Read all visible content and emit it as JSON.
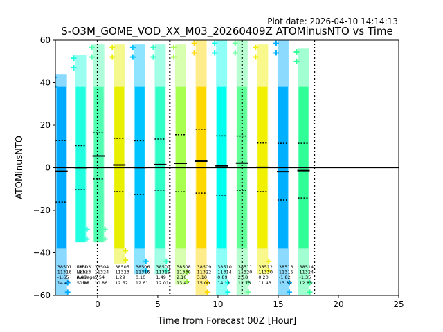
{
  "plot_date": "Plot date: 2026-04-10 14:14:13",
  "chart_data": {
    "type": "scatter",
    "title": "S-O3M_GOME_VOD_XX_M03_20260409Z ATOMinusNTO vs Time",
    "xlabel": "Time from Forecast 00Z [Hour]",
    "ylabel": "ATOMinusNTO",
    "xlim": [
      -3.5,
      25
    ],
    "ylim": [
      -60,
      60
    ],
    "x_ticks": [
      "0",
      "5",
      "10",
      "15",
      "20",
      "25"
    ],
    "x_tick_values": [
      0,
      5,
      10,
      15,
      20,
      25
    ],
    "y_ticks": [
      "−60",
      "−40",
      "−20",
      "0",
      "20",
      "40",
      "60"
    ],
    "y_tick_values": [
      -60,
      -40,
      -20,
      0,
      20,
      40,
      60
    ],
    "zero_line": 0,
    "vlines": [
      0,
      6,
      12,
      18
    ],
    "marker": "+",
    "stats_header": [
      "Orbit",
      "Nobs",
      "Average",
      "Stdev"
    ],
    "orbits": [
      {
        "x": -3.0,
        "orbit": "38501",
        "nobs": "11316",
        "mean": -1.65,
        "stdev": 14.47,
        "ymin": -60,
        "ymax": 44,
        "color": "#00aaff",
        "mean_text": "-1.65",
        "stdev_text": "14.47"
      },
      {
        "x": -1.4,
        "orbit": "38503",
        "nobs": "11323",
        "mean": 0.06,
        "stdev": 10.35,
        "ymin": -35,
        "ymax": 53,
        "color": "#20ffe0",
        "mean_text": "0.06",
        "stdev_text": "10.35"
      },
      {
        "x": 0.1,
        "orbit": "38504",
        "nobs": "11324",
        "mean": 5.54,
        "stdev": 10.86,
        "ymin": -35,
        "ymax": 58,
        "color": "#50ffb0",
        "mean_text": "5.54",
        "stdev_text": "10.86"
      },
      {
        "x": 1.8,
        "orbit": "38505",
        "nobs": "11323",
        "mean": 1.29,
        "stdev": 12.52,
        "ymin": -45,
        "ymax": 58,
        "color": "#e8f000",
        "mean_text": "1.29",
        "stdev_text": "12.52"
      },
      {
        "x": 3.5,
        "orbit": "38506",
        "nobs": "11316",
        "mean": 0.1,
        "stdev": 12.61,
        "ymin": -50,
        "ymax": 58,
        "color": "#00c4ff",
        "mean_text": "0.10",
        "stdev_text": "12.61"
      },
      {
        "x": 5.2,
        "orbit": "38507",
        "nobs": "11319",
        "mean": 1.49,
        "stdev": 12.01,
        "ymin": -50,
        "ymax": 58,
        "color": "#30ffc8",
        "mean_text": "1.49",
        "stdev_text": "12.01"
      },
      {
        "x": 6.9,
        "orbit": "38508",
        "nobs": "11330",
        "mean": 2.1,
        "stdev": 13.42,
        "ymin": -55,
        "ymax": 58,
        "color": "#a8ff50",
        "mean_text": "2.10",
        "stdev_text": "13.42"
      },
      {
        "x": 8.6,
        "orbit": "38509",
        "nobs": "11322",
        "mean": 3.1,
        "stdev": 15.0,
        "ymin": -60,
        "ymax": 60,
        "color": "#ffd800",
        "mean_text": "3.10",
        "stdev_text": "15.00"
      },
      {
        "x": 10.3,
        "orbit": "38510",
        "nobs": "11314",
        "mean": 0.89,
        "stdev": 14.11,
        "ymin": -60,
        "ymax": 60,
        "color": "#00ffee",
        "mean_text": "0.89",
        "stdev_text": "14.11"
      },
      {
        "x": 12.0,
        "orbit": "38511",
        "nobs": "11320",
        "mean": 2.18,
        "stdev": 12.75,
        "ymin": -60,
        "ymax": 60,
        "color": "#60ff98",
        "mean_text": "2.18",
        "stdev_text": "12.75"
      },
      {
        "x": 13.7,
        "orbit": "38512",
        "nobs": "11330",
        "mean": 0.2,
        "stdev": 11.43,
        "ymin": -50,
        "ymax": 58,
        "color": "#f0f000",
        "mean_text": "0.20",
        "stdev_text": "11.43"
      },
      {
        "x": 15.4,
        "orbit": "38513",
        "nobs": "11315",
        "mean": -1.82,
        "stdev": 13.32,
        "ymin": -60,
        "ymax": 60,
        "color": "#00b0ff",
        "mean_text": "-1.82",
        "stdev_text": "13.32"
      },
      {
        "x": 17.1,
        "orbit": "38514",
        "nobs": "11324",
        "mean": -1.35,
        "stdev": 12.85,
        "ymin": -60,
        "ymax": 56,
        "color": "#30ff98",
        "mean_text": "-1.35",
        "stdev_text": "12.85"
      }
    ]
  }
}
